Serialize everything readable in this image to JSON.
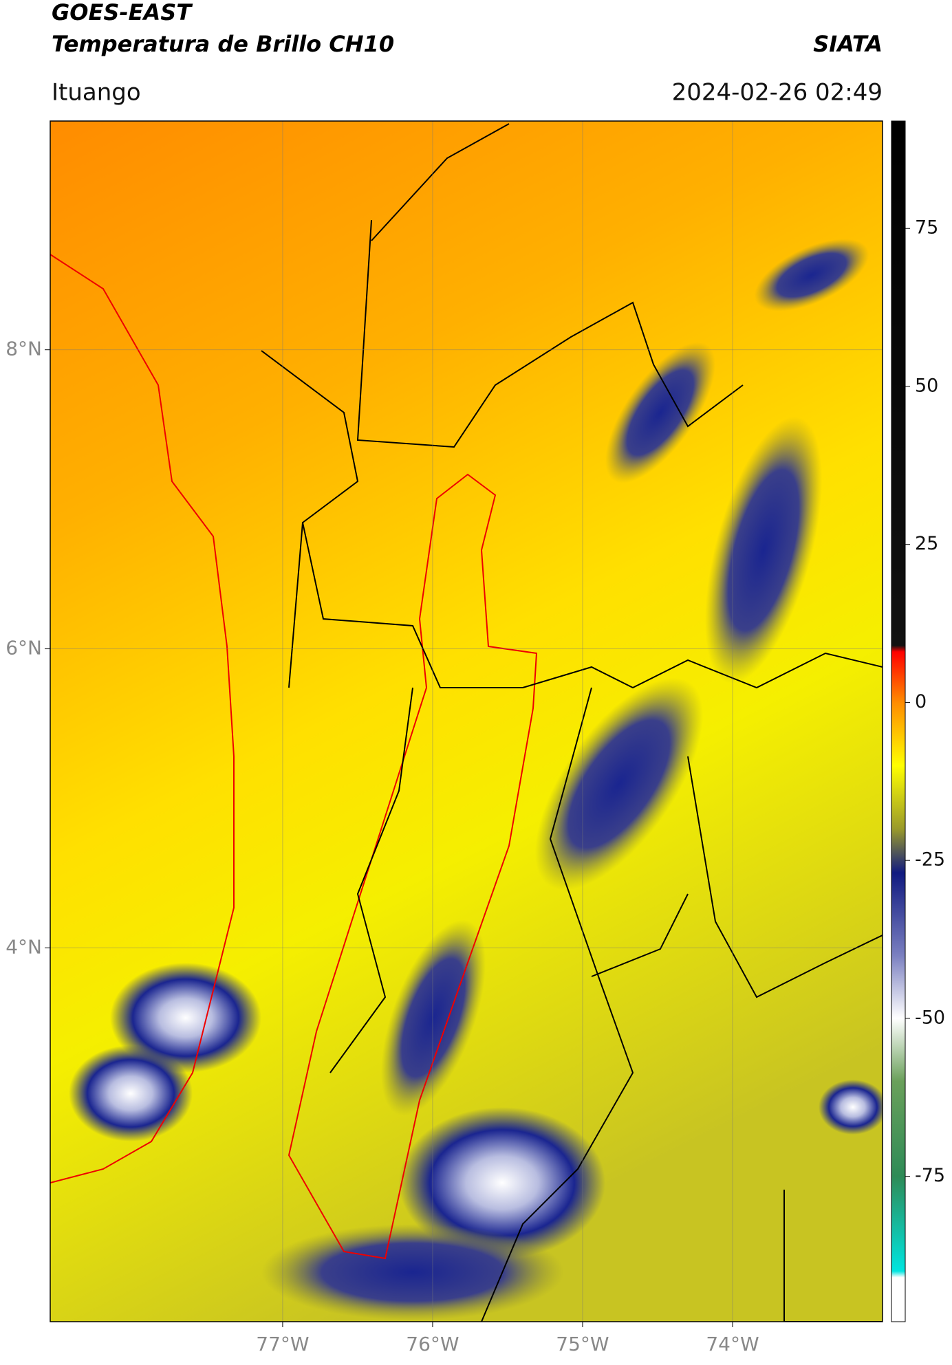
{
  "header": {
    "satellite": "GOES-EAST",
    "product": "Temperatura de Brillo CH10",
    "agency": "SIATA",
    "region": "Ituango",
    "datetime": "2024-02-26 02:49"
  },
  "map": {
    "xlim": [
      -78.55,
      -73.0
    ],
    "ylim": [
      1.5,
      9.53
    ],
    "xticks": [
      {
        "value": -77,
        "label": "77°W"
      },
      {
        "value": -76,
        "label": "76°W"
      },
      {
        "value": -75,
        "label": "75°W"
      },
      {
        "value": -74,
        "label": "74°W"
      }
    ],
    "yticks": [
      {
        "value": 8,
        "label": "8°N"
      },
      {
        "value": 6,
        "label": "6°N"
      },
      {
        "value": 4,
        "label": "4°N"
      }
    ],
    "grid": true
  },
  "colorbar": {
    "lim": [
      -98,
      92
    ],
    "ticks": [
      75,
      50,
      25,
      0,
      -25,
      -50,
      -75
    ],
    "stops": [
      {
        "value": 92,
        "color": "#000000"
      },
      {
        "value": 9,
        "color": "#111111"
      },
      {
        "value": 8,
        "color": "#ff0000"
      },
      {
        "value": 0,
        "color": "#ff8c00"
      },
      {
        "value": -10,
        "color": "#ffff00"
      },
      {
        "value": -20,
        "color": "#9a9a2a"
      },
      {
        "value": -27,
        "color": "#101a80"
      },
      {
        "value": -40,
        "color": "#7a7fc0"
      },
      {
        "value": -50,
        "color": "#ffffff"
      },
      {
        "value": -60,
        "color": "#6aa05a"
      },
      {
        "value": -75,
        "color": "#2e8b57"
      },
      {
        "value": -90,
        "color": "#00e5e0"
      },
      {
        "value": -91,
        "color": "#ffffff"
      },
      {
        "value": -98,
        "color": "#ffffff"
      }
    ]
  }
}
